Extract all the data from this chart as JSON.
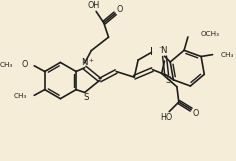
{
  "background_color": "#f5edd8",
  "line_color": "#1e1e1e",
  "lw": 1.2,
  "figsize": [
    2.36,
    1.61
  ],
  "dpi": 100,
  "xlim": [
    0,
    236
  ],
  "ylim": [
    0,
    161
  ]
}
